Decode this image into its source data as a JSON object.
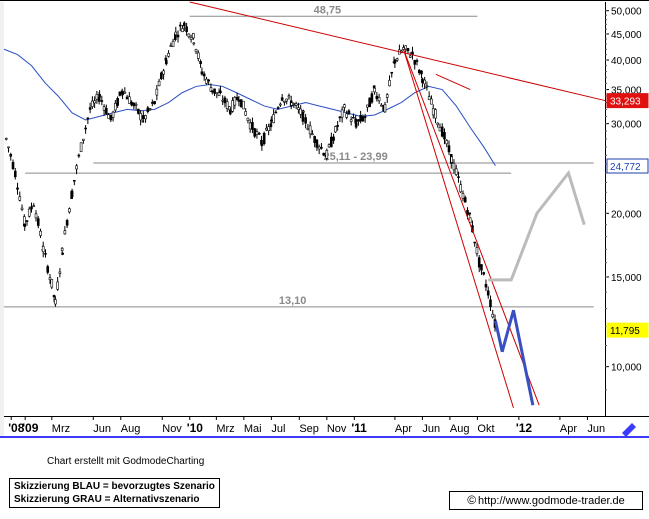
{
  "chart_data": {
    "type": "candlestick",
    "title": "",
    "y_axis": {
      "scale": "log",
      "ylim": [
        8,
        52
      ],
      "ticks": [
        10000,
        15000,
        20000,
        25000,
        30000,
        35000,
        40000,
        45000,
        50000
      ],
      "tick_labels": [
        "10,000",
        "15,000",
        "20,000",
        "25,000",
        "30,000",
        "35,000",
        "40,000",
        "45,000",
        "50,000"
      ]
    },
    "x_axis": {
      "range": [
        "2008-11-15",
        "2012-07-10"
      ],
      "ticks": [
        {
          "date": "2008-12-01",
          "label": "'08",
          "bold": true
        },
        {
          "date": "2009-01-01",
          "label": "'09",
          "bold": true
        },
        {
          "date": "2009-03-01",
          "label": "Mrz",
          "bold": false
        },
        {
          "date": "2009-06-01",
          "label": "Jun",
          "bold": false
        },
        {
          "date": "2009-08-01",
          "label": "Aug",
          "bold": false
        },
        {
          "date": "2009-11-01",
          "label": "Nov",
          "bold": false
        },
        {
          "date": "2010-01-01",
          "label": "'10",
          "bold": true
        },
        {
          "date": "2010-03-01",
          "label": "Mrz",
          "bold": false
        },
        {
          "date": "2010-05-01",
          "label": "Mai",
          "bold": false
        },
        {
          "date": "2010-07-01",
          "label": "Jul",
          "bold": false
        },
        {
          "date": "2010-09-01",
          "label": "Sep",
          "bold": false
        },
        {
          "date": "2010-11-01",
          "label": "Nov",
          "bold": false
        },
        {
          "date": "2011-01-01",
          "label": "'11",
          "bold": true
        },
        {
          "date": "2011-04-01",
          "label": "Apr",
          "bold": false
        },
        {
          "date": "2011-06-01",
          "label": "Jun",
          "bold": false
        },
        {
          "date": "2011-08-01",
          "label": "Aug",
          "bold": false
        },
        {
          "date": "2011-10-01",
          "label": "Okt",
          "bold": false
        },
        {
          "date": "2012-01-01",
          "label": "'12",
          "bold": true
        },
        {
          "date": "2012-04-01",
          "label": "Apr",
          "bold": false
        },
        {
          "date": "2012-06-01",
          "label": "Jun",
          "bold": false
        }
      ]
    },
    "series": [
      {
        "kind": "price",
        "color": "#000000",
        "points": [
          [
            "2008-11-20",
            28
          ],
          [
            "2008-12-10",
            24
          ],
          [
            "2008-12-31",
            19
          ],
          [
            "2009-01-20",
            21
          ],
          [
            "2009-02-10",
            17
          ],
          [
            "2009-03-01",
            14.5
          ],
          [
            "2009-03-09",
            13.3
          ],
          [
            "2009-03-25",
            17
          ],
          [
            "2009-04-15",
            22
          ],
          [
            "2009-05-05",
            27
          ],
          [
            "2009-05-25",
            32
          ],
          [
            "2009-06-15",
            34
          ],
          [
            "2009-07-10",
            30.5
          ],
          [
            "2009-08-05",
            35
          ],
          [
            "2009-08-25",
            33
          ],
          [
            "2009-09-20",
            30.5
          ],
          [
            "2009-10-15",
            33
          ],
          [
            "2009-11-10",
            40
          ],
          [
            "2009-12-01",
            45
          ],
          [
            "2009-12-20",
            47
          ],
          [
            "2010-01-10",
            44
          ],
          [
            "2010-01-28",
            38
          ],
          [
            "2010-02-20",
            35
          ],
          [
            "2010-03-10",
            34
          ],
          [
            "2010-04-01",
            32
          ],
          [
            "2010-04-20",
            34
          ],
          [
            "2010-05-15",
            30
          ],
          [
            "2010-06-10",
            27.5
          ],
          [
            "2010-07-01",
            30
          ],
          [
            "2010-07-25",
            34
          ],
          [
            "2010-08-15",
            33
          ],
          [
            "2010-09-10",
            31
          ],
          [
            "2010-10-05",
            28
          ],
          [
            "2010-11-01",
            26
          ],
          [
            "2010-11-20",
            29
          ],
          [
            "2010-12-10",
            32
          ],
          [
            "2011-01-05",
            30
          ],
          [
            "2011-01-25",
            31
          ],
          [
            "2011-02-15",
            35
          ],
          [
            "2011-03-10",
            32
          ],
          [
            "2011-04-01",
            40
          ],
          [
            "2011-04-20",
            42
          ],
          [
            "2011-05-10",
            41
          ],
          [
            "2011-06-01",
            37
          ],
          [
            "2011-06-25",
            32
          ],
          [
            "2011-07-15",
            29
          ],
          [
            "2011-08-05",
            25.5
          ],
          [
            "2011-08-25",
            22.5
          ],
          [
            "2011-09-15",
            19.5
          ],
          [
            "2011-10-05",
            16
          ],
          [
            "2011-10-25",
            14
          ],
          [
            "2011-11-10",
            12
          ]
        ]
      },
      {
        "kind": "moving_average",
        "color": "#2b4fc4",
        "points": [
          [
            "2008-11-15",
            42
          ],
          [
            "2008-12-15",
            41
          ],
          [
            "2009-01-15",
            39
          ],
          [
            "2009-02-15",
            36
          ],
          [
            "2009-03-15",
            34
          ],
          [
            "2009-04-15",
            31.5
          ],
          [
            "2009-05-15",
            30.5
          ],
          [
            "2009-06-15",
            31
          ],
          [
            "2009-07-15",
            31.5
          ],
          [
            "2009-08-15",
            32
          ],
          [
            "2009-09-15",
            31.8
          ],
          [
            "2009-10-15",
            32
          ],
          [
            "2009-11-15",
            33
          ],
          [
            "2009-12-15",
            34.5
          ],
          [
            "2010-01-15",
            35.5
          ],
          [
            "2010-02-15",
            35.8
          ],
          [
            "2010-03-15",
            35.5
          ],
          [
            "2010-04-15",
            34.5
          ],
          [
            "2010-05-15",
            33.5
          ],
          [
            "2010-06-15",
            32.5
          ],
          [
            "2010-07-15",
            32
          ],
          [
            "2010-08-15",
            32.5
          ],
          [
            "2010-09-15",
            33
          ],
          [
            "2010-10-15",
            32.5
          ],
          [
            "2010-11-15",
            32
          ],
          [
            "2010-12-15",
            31.5
          ],
          [
            "2011-01-15",
            31
          ],
          [
            "2011-02-15",
            31.2
          ],
          [
            "2011-03-15",
            32
          ],
          [
            "2011-04-15",
            33
          ],
          [
            "2011-05-15",
            34.5
          ],
          [
            "2011-06-15",
            35.5
          ],
          [
            "2011-07-15",
            35
          ],
          [
            "2011-08-15",
            32.5
          ],
          [
            "2011-09-15",
            29.5
          ],
          [
            "2011-10-15",
            27
          ],
          [
            "2011-11-10",
            24.8
          ]
        ]
      }
    ],
    "horizontal_levels": [
      {
        "value": 48.75,
        "label": "48,75",
        "from": "2010-01-01",
        "to": "2011-10-01"
      },
      {
        "value": 25.11,
        "label": "25,11 - 23,99",
        "from": "2009-06-01",
        "to": "2012-06-15"
      },
      {
        "value": 23.99,
        "label": "",
        "from": "2009-01-01",
        "to": "2011-12-15"
      },
      {
        "value": 13.1,
        "label": "13,10",
        "from": "2008-11-15",
        "to": "2012-06-15"
      }
    ],
    "trendlines": [
      {
        "color": "#cc0000",
        "from": [
          "2010-01-01",
          52
        ],
        "to": [
          "2012-07-10",
          33.3
        ]
      },
      {
        "color": "#cc0000",
        "from": [
          "2011-04-20",
          42
        ],
        "to": [
          "2012-02-15",
          8.4
        ]
      },
      {
        "color": "#cc0000",
        "from": [
          "2011-04-20",
          42
        ],
        "to": [
          "2011-12-20",
          8.3
        ]
      },
      {
        "color": "#cc0000",
        "from": [
          "2011-07-01",
          37.5
        ],
        "to": [
          "2011-09-15",
          35
        ]
      }
    ],
    "scenarios": [
      {
        "name": "bevorzugtes Szenario",
        "color": "#3a4fc2",
        "points": [
          [
            "2011-11-10",
            12.3
          ],
          [
            "2011-11-25",
            10.7
          ],
          [
            "2011-12-20",
            12.9
          ],
          [
            "2012-02-01",
            8.4
          ]
        ]
      },
      {
        "name": "Alternativszenario",
        "color": "#bbbbbb",
        "points": [
          [
            "2011-10-25",
            14.8
          ],
          [
            "2011-12-15",
            14.8
          ],
          [
            "2012-02-10",
            20.0
          ],
          [
            "2012-04-20",
            24.0
          ],
          [
            "2012-05-25",
            19.0
          ]
        ]
      }
    ],
    "price_labels": [
      {
        "value": 33.293,
        "label": "33,293",
        "color": "#e01010",
        "text_color": "#ffffff"
      },
      {
        "value": 24.772,
        "label": "24,772",
        "color": "#ffffff",
        "text_color": "#1c3fae"
      },
      {
        "value": 11.795,
        "label": "11,795",
        "color": "#ffff00",
        "text_color": "#000000"
      }
    ]
  },
  "footer": {
    "credit": "Chart erstellt mit GodmodeCharting",
    "legend_blue": "Skizzierung BLAU = bevorzugtes Szenario",
    "legend_gray": "Skizzierung GRAU = Alternativszenario",
    "copyright_symbol": "©",
    "source_url": "http://www.godmode-trader.de"
  }
}
